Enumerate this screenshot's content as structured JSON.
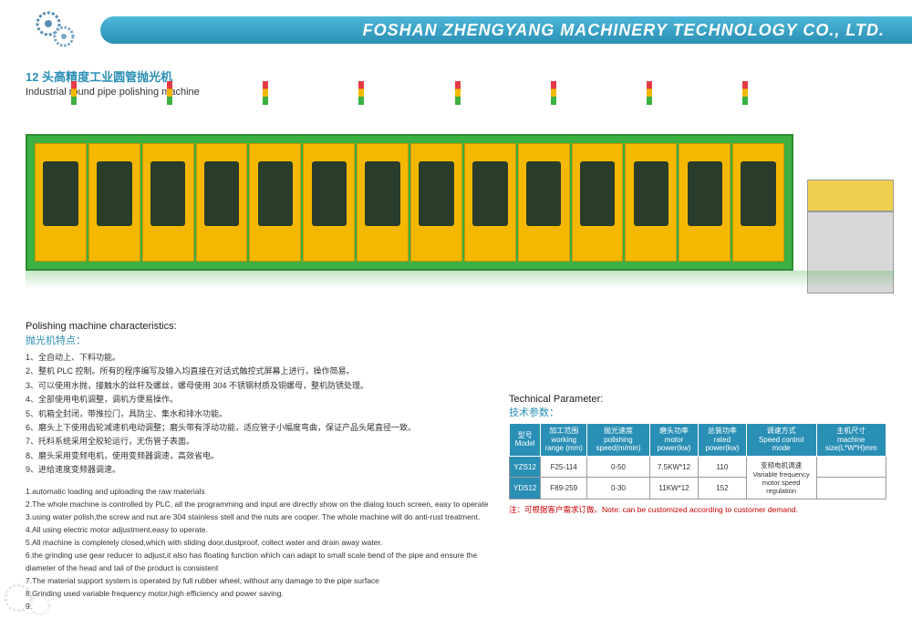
{
  "header": {
    "company": "FOSHAN ZHENGYANG MACHINERY TECHNOLOGY CO., LTD."
  },
  "product": {
    "title_cn": "12 头高精度工业圆管抛光机",
    "title_en": "Industrial round pipe polishing machine"
  },
  "characteristics": {
    "title_en": "Polishing machine characteristics:",
    "title_cn": "抛光机特点：",
    "items_cn": [
      "1、全自动上、下料功能。",
      "2、整机 PLC 控制。所有的程序编写及输入均直接在对话式触控式屏幕上进行，操作简易。",
      "3、可以使用水抛，接触水的丝杆及螺丝，螺母使用 304 不锈钢材质及铜螺母，整机防锈处理。",
      "4、全部使用电机调整，调机方便易操作。",
      "5、机箱全封闭，带推拉门，具防尘、集水和排水功能。",
      "6、磨头上下使用齿轮减速机电动调整；磨头带有浮动功能，适应管子小幅度弯曲，保证产品头尾直径一致。",
      "7、托料系统采用全胶轮运行，无伤管子表面。",
      "8、磨头采用变频电机，使用变频器调速，高效省电。",
      "9、进给速度变频器调速。"
    ],
    "items_en": [
      "1.automatic loading and uploading the raw materials",
      "2.The whole machine is controlled by PLC, all the programming and input are directly show on the dialog touch screen, easy to operate",
      "3.using water polish,the screw and nut are 304 stainless stell and the nuts are cooper. The whole machine will do anti-rust treatment.",
      "4.All using electric motor adjustment,easy to operate.",
      "5.All machine is completely closed,which with sliding door,dustproof, collect water and drain away water.",
      "6.the grinding use gear reducer to adjust,it also has floating function which can adapt to small scale bend of the pipe and ensure the diameter of the head and tail of the product is consistent",
      "7.The material support system is operated by full rubber wheel, without any damage to the pipe surface",
      "8.Grinding used variable frequency motor,high efficiency and power saving.",
      "9."
    ]
  },
  "parameters": {
    "title_en": "Technical Parameter:",
    "title_cn": "技术参数：",
    "headers": {
      "model": {
        "cn": "型号",
        "en": "Model"
      },
      "range": {
        "cn": "加工范围",
        "en": "working range (mm)"
      },
      "speed": {
        "cn": "抛光速度",
        "en": "polishing speed(m/min)"
      },
      "motor": {
        "cn": "磨头功率",
        "en": "motor power(kw)"
      },
      "rated": {
        "cn": "总装功率",
        "en": "rated power(kw)"
      },
      "control": {
        "cn": "调速方式",
        "en": "Speed control mode"
      },
      "size": {
        "cn": "主机尺寸",
        "en": "machine size(L*W*H)mm"
      }
    },
    "rows": [
      {
        "model": "YZS12",
        "range": "F25-114",
        "speed": "0-50",
        "motor": "7.5KW*12",
        "rated": "110",
        "size": ""
      },
      {
        "model": "YDS12",
        "range": "F89-259",
        "speed": "0-30",
        "motor": "11KW*12",
        "rated": "152",
        "size": ""
      }
    ],
    "control_cn": "变频电机调速",
    "control_en": "Variable frequency motor speed regulation",
    "note": "注：可根据客户需求订做。Note: can be customized according to customer demand."
  },
  "machine": {
    "unit_count": 14,
    "tower_count": 8,
    "colors": {
      "body": "#3cb043",
      "unit": "#f5b800",
      "window": "#2a3d2a"
    }
  }
}
